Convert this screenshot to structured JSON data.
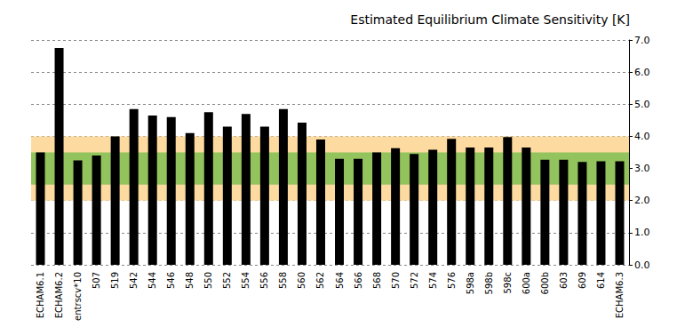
{
  "chart_data": {
    "type": "bar",
    "title": "Estimated Equilibrium Climate Sensitivity [K]",
    "categories": [
      "ECHAM6.1",
      "ECHAM6.2",
      "entrscv*10",
      "507",
      "519",
      "542",
      "544",
      "546",
      "548",
      "550",
      "552",
      "554",
      "556",
      "558",
      "560",
      "562",
      "564",
      "566",
      "568",
      "570",
      "572",
      "574",
      "576",
      "598a",
      "598b",
      "598c",
      "600a",
      "600b",
      "603",
      "609",
      "614",
      "ECHAM6.3"
    ],
    "values": [
      3.5,
      6.75,
      3.25,
      3.4,
      4.0,
      4.85,
      4.65,
      4.6,
      4.1,
      4.75,
      4.3,
      4.7,
      4.3,
      4.85,
      4.43,
      3.9,
      3.3,
      3.3,
      3.5,
      3.63,
      3.45,
      3.58,
      3.92,
      3.65,
      3.65,
      3.98,
      3.65,
      3.27,
      3.27,
      3.2,
      3.22,
      3.22
    ],
    "color": "#000000",
    "ylim": [
      0,
      7
    ],
    "yticks": [
      {
        "value": 0,
        "label": "0.0"
      },
      {
        "value": 1,
        "label": "1.0"
      },
      {
        "value": 2,
        "label": "2.0"
      },
      {
        "value": 3,
        "label": "3.0"
      },
      {
        "value": 4,
        "label": "4.0"
      },
      {
        "value": 5,
        "label": "5.0"
      },
      {
        "value": 6,
        "label": "6.0"
      },
      {
        "value": 7,
        "label": "7.0"
      }
    ],
    "bands": [
      {
        "from": 2.0,
        "to": 4.0,
        "color": "#fddba0"
      },
      {
        "from": 2.5,
        "to": 3.5,
        "color": "#93c35c"
      }
    ],
    "grid": true
  }
}
